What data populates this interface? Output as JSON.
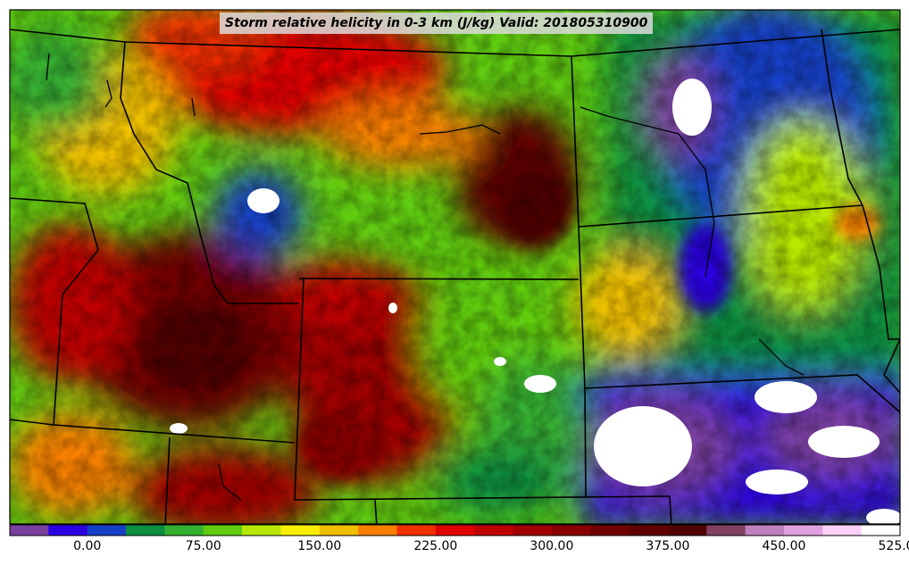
{
  "title": "Storm relative helicity in 0-3 km (J/kg) Valid: 201805310900",
  "colorbar": {
    "colors": [
      "#7b3fa0",
      "#2a00e0",
      "#1640c8",
      "#0a9040",
      "#34b030",
      "#60cc10",
      "#b8e800",
      "#f8f000",
      "#f0c000",
      "#f88000",
      "#f03000",
      "#e00000",
      "#c00000",
      "#a00000",
      "#880000",
      "#700000",
      "#600000",
      "#500000",
      "#804060",
      "#c080c0",
      "#e0a0e0",
      "#f8d0f8",
      "#ffffff"
    ],
    "tick_labels": [
      "0.00",
      "75.00",
      "150.00",
      "225.00",
      "300.00",
      "375.00",
      "450.00",
      "525.00"
    ]
  }
}
